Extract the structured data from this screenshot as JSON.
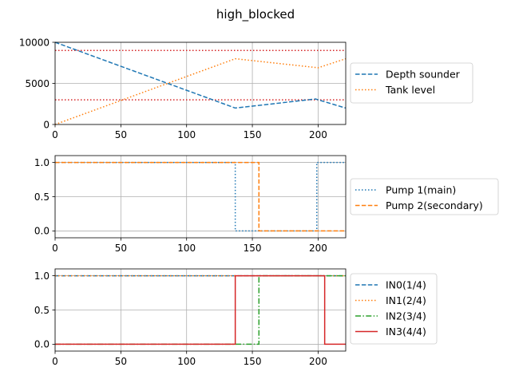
{
  "title": "high_blocked",
  "colors": {
    "blue": "#1f77b4",
    "orange": "#ff7f0e",
    "green": "#2ca02c",
    "red": "#d62728",
    "threshold": "#d62728",
    "grid": "#b0b0b0"
  },
  "chart_data": [
    {
      "type": "line",
      "title": "high_blocked",
      "xlim": [
        0,
        221
      ],
      "ylim": [
        0,
        10000
      ],
      "xticks": [
        0,
        50,
        100,
        150,
        200
      ],
      "yticks": [
        0,
        5000,
        10000
      ],
      "grid": true,
      "legend_position": "right-outside",
      "hlines": [
        {
          "y": 9000,
          "style": "dotted",
          "color": "#d62728"
        },
        {
          "y": 3000,
          "style": "dotted",
          "color": "#d62728"
        }
      ],
      "series": [
        {
          "name": "Depth sounder",
          "style": "dashed",
          "color": "#1f77b4",
          "x": [
            0,
            137,
            198,
            221
          ],
          "y": [
            10000,
            2000,
            3100,
            2000
          ]
        },
        {
          "name": "Tank level",
          "style": "dotted",
          "color": "#ff7f0e",
          "x": [
            0,
            137,
            200,
            221
          ],
          "y": [
            0,
            8000,
            6900,
            8000
          ]
        }
      ]
    },
    {
      "type": "line",
      "xlim": [
        0,
        221
      ],
      "ylim": [
        -0.1,
        1.1
      ],
      "xticks": [
        0,
        50,
        100,
        150,
        200
      ],
      "yticks": [
        0.0,
        0.5,
        1.0
      ],
      "grid": true,
      "legend_position": "right-outside",
      "series": [
        {
          "name": "Pump 1(main)",
          "style": "dotted",
          "color": "#1f77b4",
          "x": [
            0,
            137,
            137,
            199,
            199,
            221
          ],
          "y": [
            1,
            1,
            0,
            0,
            1,
            1
          ]
        },
        {
          "name": "Pump 2(secondary)",
          "style": "dashed",
          "color": "#ff7f0e",
          "x": [
            0,
            155,
            155,
            221
          ],
          "y": [
            1,
            1,
            0,
            0
          ]
        }
      ]
    },
    {
      "type": "line",
      "xlim": [
        0,
        221
      ],
      "ylim": [
        -0.1,
        1.1
      ],
      "xticks": [
        0,
        50,
        100,
        150,
        200
      ],
      "yticks": [
        0.0,
        0.5,
        1.0
      ],
      "grid": true,
      "legend_position": "right-outside",
      "series": [
        {
          "name": "IN0(1/4)",
          "style": "dashed",
          "color": "#1f77b4",
          "x": [
            0,
            221
          ],
          "y": [
            1,
            1
          ]
        },
        {
          "name": "IN1(2/4)",
          "style": "dotted",
          "color": "#ff7f0e",
          "x": [
            0,
            221
          ],
          "y": [
            1,
            1
          ]
        },
        {
          "name": "IN2(3/4)",
          "style": "dashdot",
          "color": "#2ca02c",
          "x": [
            0,
            155,
            155,
            221
          ],
          "y": [
            0,
            0,
            1,
            1
          ]
        },
        {
          "name": "IN3(4/4)",
          "style": "solid",
          "color": "#d62728",
          "x": [
            0,
            137,
            137,
            205,
            205,
            221
          ],
          "y": [
            0,
            0,
            1,
            1,
            0,
            0
          ]
        }
      ]
    }
  ]
}
